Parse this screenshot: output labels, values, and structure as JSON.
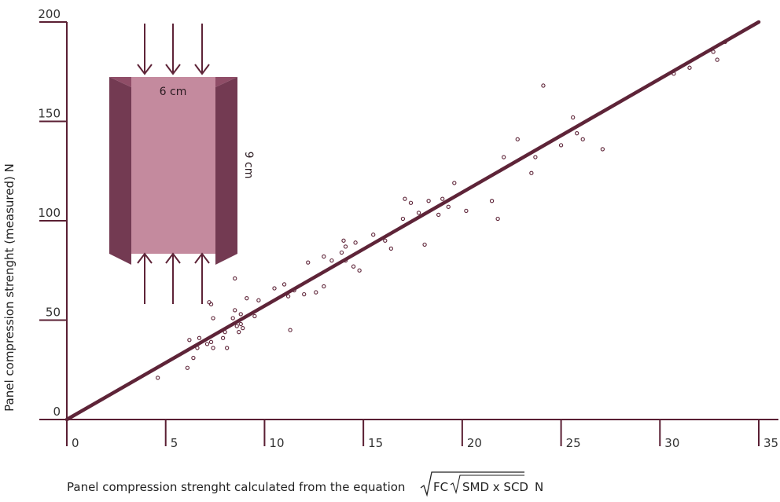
{
  "chart_data": {
    "type": "scatter",
    "title": "",
    "xlabel": "Panel compression strenght calculated from the equation",
    "xlabel_formula": {
      "outer": "FC",
      "inner": "SMD x SCD",
      "unit": "N"
    },
    "ylabel": "Panel compression strenght (measured)  N",
    "xlim": [
      0,
      35
    ],
    "ylim": [
      0,
      200
    ],
    "x_ticks": [
      0,
      5,
      10,
      15,
      20,
      25,
      30,
      35
    ],
    "x_tick_labels": [
      "0",
      "5",
      "10",
      "15",
      "20",
      "25",
      "30",
      "35"
    ],
    "y_ticks": [
      0,
      50,
      100,
      150,
      200
    ],
    "y_tick_labels": [
      "0",
      "50",
      "100",
      "150",
      "200"
    ],
    "grid": false,
    "colors": {
      "line": "#5e2438",
      "points": "#5e2438",
      "axis": "#5a1f33",
      "panel_face": "#c48a9e",
      "panel_side": "#733a52"
    },
    "fit_line": {
      "x": [
        0,
        35
      ],
      "y": [
        0,
        200
      ],
      "label": ""
    },
    "series": [
      {
        "name": "measured",
        "points": [
          [
            4.6,
            21
          ],
          [
            6.1,
            26
          ],
          [
            6.2,
            40
          ],
          [
            6.4,
            31
          ],
          [
            6.6,
            36
          ],
          [
            6.7,
            41
          ],
          [
            7.1,
            38
          ],
          [
            7.3,
            39
          ],
          [
            7.4,
            36
          ],
          [
            7.4,
            51
          ],
          [
            7.2,
            59
          ],
          [
            7.3,
            58
          ],
          [
            7.9,
            41
          ],
          [
            8.0,
            44
          ],
          [
            8.1,
            36
          ],
          [
            8.4,
            51
          ],
          [
            8.5,
            55
          ],
          [
            8.6,
            47
          ],
          [
            8.7,
            44
          ],
          [
            8.8,
            53
          ],
          [
            8.8,
            48
          ],
          [
            8.9,
            46
          ],
          [
            9.1,
            61
          ],
          [
            9.5,
            52
          ],
          [
            9.7,
            60
          ],
          [
            8.5,
            71
          ],
          [
            10.5,
            66
          ],
          [
            11.0,
            68
          ],
          [
            11.2,
            62
          ],
          [
            11.3,
            45
          ],
          [
            11.5,
            65
          ],
          [
            12.0,
            63
          ],
          [
            12.2,
            79
          ],
          [
            12.6,
            64
          ],
          [
            13.0,
            67
          ],
          [
            13.0,
            82
          ],
          [
            13.4,
            80
          ],
          [
            13.9,
            84
          ],
          [
            14.0,
            90
          ],
          [
            14.1,
            87
          ],
          [
            14.1,
            80
          ],
          [
            14.5,
            77
          ],
          [
            14.6,
            89
          ],
          [
            14.8,
            75
          ],
          [
            15.5,
            93
          ],
          [
            16.1,
            90
          ],
          [
            16.4,
            86
          ],
          [
            17.0,
            101
          ],
          [
            17.1,
            111
          ],
          [
            17.4,
            109
          ],
          [
            17.8,
            104
          ],
          [
            18.1,
            88
          ],
          [
            18.3,
            110
          ],
          [
            18.8,
            103
          ],
          [
            19.0,
            111
          ],
          [
            19.3,
            107
          ],
          [
            19.6,
            119
          ],
          [
            20.2,
            105
          ],
          [
            21.5,
            110
          ],
          [
            21.8,
            101
          ],
          [
            22.1,
            132
          ],
          [
            22.8,
            141
          ],
          [
            23.5,
            124
          ],
          [
            23.7,
            132
          ],
          [
            24.1,
            168
          ],
          [
            25.0,
            138
          ],
          [
            25.6,
            152
          ],
          [
            25.8,
            144
          ],
          [
            26.1,
            141
          ],
          [
            27.1,
            136
          ],
          [
            30.7,
            174
          ],
          [
            31.5,
            177
          ],
          [
            32.7,
            185
          ],
          [
            32.9,
            181
          ],
          [
            33.3,
            190
          ]
        ]
      }
    ]
  },
  "diagram": {
    "width_label": "6 cm",
    "height_label": "9 cm"
  }
}
